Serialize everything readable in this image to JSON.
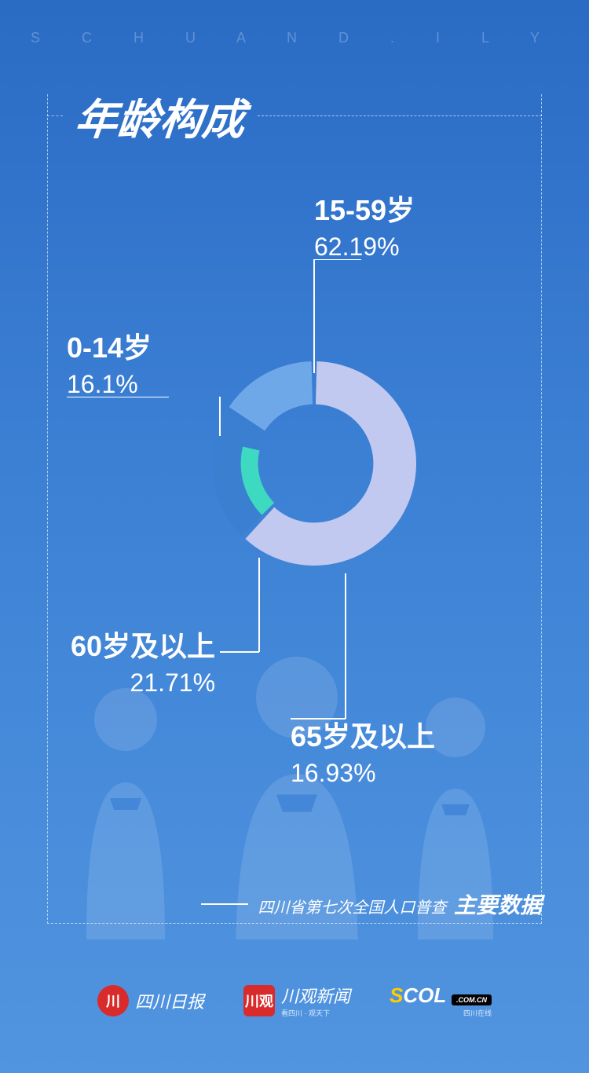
{
  "header": {
    "brand_letters": "S  C H U A N   D . I L Y"
  },
  "title": "年龄构成",
  "chart": {
    "type": "donut",
    "inner_radius_ratio": 0.58,
    "gap_deg": 3,
    "background_gradient": [
      "#2a6bc4",
      "#5195e0"
    ],
    "segments": [
      {
        "id": "age-15-59",
        "label": "15-59岁",
        "pct_label": "62.19%",
        "value": 62.19,
        "color": "#c2c9f0"
      },
      {
        "id": "age-65-plus",
        "label": "65岁及以上",
        "pct_label": "16.93%",
        "value": 16.93,
        "color": "#3dd9c1",
        "thin": true
      },
      {
        "id": "age-60-plus",
        "label": "60岁及以上",
        "pct_label": "21.71%",
        "value": 21.71,
        "color": "#3a7fd0"
      },
      {
        "id": "age-0-14",
        "label": "0-14岁",
        "pct_label": "16.1%",
        "value": 16.1,
        "color": "#6fa8e8"
      }
    ],
    "start_angle_deg": -90,
    "normalize_groups": [
      [
        "age-15-59",
        "age-60-plus",
        "age-0-14"
      ]
    ],
    "label_color": "#ffffff",
    "label_age_fontsize": 36,
    "label_pct_fontsize": 32,
    "leader_color": "#ffffff"
  },
  "footer": {
    "subtitle_prefix": "四川省第七次全国人口普查",
    "subtitle_bold": "主要数据"
  },
  "logos": {
    "scrb": "四川日报",
    "cgxw": {
      "badge": "川观",
      "main": "川观新闻",
      "sub": "看四川 · 观天下"
    },
    "scol": {
      "s": "S",
      "rest": "COL",
      "badge": ".COM.CN",
      "sub": "四川在线"
    }
  }
}
